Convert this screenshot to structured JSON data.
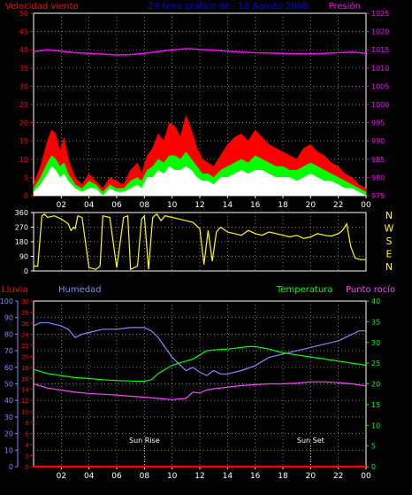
{
  "colors": {
    "wind_max": "#ff0000",
    "wind_avg": "#00ff00",
    "wind_min": "#ffffff",
    "pressure": "#ff00ff",
    "direction": "#ffff00",
    "rain": "#ff0000",
    "humidity": "#8888ff",
    "temperature": "#00ff00",
    "dewpoint": "#ff44ff",
    "grid": "#aaaaaa",
    "axis": "#ffffff",
    "title": "#0000ff"
  },
  "chart_data": [
    {
      "type": "area",
      "title": "24 hora gráfico de - 18 Agosto 2008",
      "left_axis_label": "Velocidad viento",
      "right_axis_label": "Presión",
      "x_ticks": [
        "02",
        "04",
        "06",
        "08",
        "10",
        "12",
        "14",
        "16",
        "18",
        "20",
        "22",
        "00"
      ],
      "x_range": [
        0,
        24
      ],
      "left_ylim": [
        0,
        50
      ],
      "left_ticks": [
        "0",
        "5",
        "10",
        "15",
        "20",
        "25",
        "30",
        "35",
        "40",
        "45",
        "50"
      ],
      "right_ylim": [
        975,
        1025
      ],
      "right_ticks": [
        "975",
        "980",
        "985",
        "990",
        "995",
        "1000",
        "1005",
        "1010",
        "1015",
        "1020",
        "1025"
      ],
      "grid": true,
      "series": [
        {
          "key": "wind_gust",
          "axis": "left",
          "x": [
            0.0,
            0.5,
            1.0,
            1.3,
            1.6,
            1.9,
            2.2,
            2.5,
            3.0,
            3.5,
            4.0,
            4.5,
            5.0,
            5.5,
            6.0,
            6.5,
            7.0,
            7.5,
            7.8,
            8.2,
            8.6,
            9.0,
            9.4,
            9.8,
            10.2,
            10.6,
            11.0,
            11.4,
            11.8,
            12.2,
            12.6,
            13.0,
            13.5,
            14.0,
            14.5,
            15.0,
            15.5,
            16.0,
            16.5,
            17.0,
            17.5,
            18.0,
            18.5,
            19.0,
            19.5,
            20.0,
            20.5,
            21.0,
            21.5,
            22.0,
            22.5,
            23.0,
            23.5,
            24.0
          ],
          "values": [
            3,
            8,
            15,
            18,
            17,
            12,
            16,
            10,
            5,
            3,
            6,
            4,
            2,
            5,
            4,
            3,
            7,
            9,
            6,
            11,
            13,
            17,
            15,
            20,
            19,
            16,
            22,
            18,
            13,
            10,
            9,
            8,
            11,
            14,
            16,
            17,
            15,
            18,
            16,
            14,
            13,
            12,
            11,
            10,
            13,
            14,
            12,
            11,
            9,
            8,
            6,
            5,
            3,
            2
          ]
        },
        {
          "key": "wind_avg",
          "axis": "left",
          "x": [
            0.0,
            0.5,
            1.0,
            1.3,
            1.6,
            1.9,
            2.2,
            2.5,
            3.0,
            3.5,
            4.0,
            4.5,
            5.0,
            5.5,
            6.0,
            6.5,
            7.0,
            7.5,
            7.8,
            8.2,
            8.6,
            9.0,
            9.4,
            9.8,
            10.2,
            10.6,
            11.0,
            11.4,
            11.8,
            12.2,
            12.6,
            13.0,
            13.5,
            14.0,
            14.5,
            15.0,
            15.5,
            16.0,
            16.5,
            17.0,
            17.5,
            18.0,
            18.5,
            19.0,
            19.5,
            20.0,
            20.5,
            21.0,
            21.5,
            22.0,
            22.5,
            23.0,
            23.5,
            24.0
          ],
          "values": [
            2,
            5,
            9,
            11,
            10,
            8,
            9,
            6,
            3,
            2,
            4,
            3,
            1,
            3,
            2,
            2,
            4,
            5,
            4,
            7,
            8,
            10,
            9,
            11,
            11,
            10,
            12,
            10,
            8,
            6,
            6,
            5,
            7,
            8,
            9,
            10,
            9,
            11,
            10,
            9,
            8,
            8,
            7,
            7,
            8,
            9,
            8,
            7,
            6,
            5,
            4,
            3,
            2,
            1
          ]
        },
        {
          "key": "wind_min",
          "axis": "left",
          "x": [
            0.0,
            0.5,
            1.0,
            1.3,
            1.6,
            1.9,
            2.2,
            2.5,
            3.0,
            3.5,
            4.0,
            4.5,
            5.0,
            5.5,
            6.0,
            6.5,
            7.0,
            7.5,
            7.8,
            8.2,
            8.6,
            9.0,
            9.4,
            9.8,
            10.2,
            10.6,
            11.0,
            11.4,
            11.8,
            12.2,
            12.6,
            13.0,
            13.5,
            14.0,
            14.5,
            15.0,
            15.5,
            16.0,
            16.5,
            17.0,
            17.5,
            18.0,
            18.5,
            19.0,
            19.5,
            20.0,
            20.5,
            21.0,
            21.5,
            22.0,
            22.5,
            23.0,
            23.5,
            24.0
          ],
          "values": [
            1,
            3,
            6,
            8,
            7,
            5,
            6,
            4,
            2,
            1,
            2,
            2,
            0,
            2,
            1,
            1,
            2,
            3,
            2,
            5,
            5,
            7,
            6,
            8,
            7,
            7,
            8,
            7,
            5,
            4,
            4,
            3,
            5,
            5,
            6,
            7,
            6,
            7,
            7,
            6,
            5,
            5,
            5,
            4,
            5,
            6,
            5,
            4,
            4,
            3,
            2,
            2,
            1,
            0
          ]
        },
        {
          "key": "pressure",
          "axis": "right",
          "x": [
            0,
            1,
            2,
            3,
            4,
            5,
            6,
            7,
            8,
            9,
            10,
            11,
            12,
            13,
            14,
            15,
            16,
            17,
            18,
            19,
            20,
            21,
            22,
            23,
            24
          ],
          "values": [
            1014.5,
            1015.0,
            1014.6,
            1014.2,
            1014.0,
            1013.8,
            1013.6,
            1013.7,
            1014.0,
            1014.5,
            1015.0,
            1015.3,
            1015.1,
            1014.9,
            1014.6,
            1014.4,
            1014.2,
            1014.1,
            1014.0,
            1013.9,
            1013.9,
            1014.0,
            1014.2,
            1014.4,
            1014.0
          ]
        }
      ]
    },
    {
      "type": "line",
      "title": "",
      "ylim": [
        0,
        360
      ],
      "left_ticks": [
        "0",
        "90",
        "180",
        "270",
        "360"
      ],
      "right_labels": [
        "N",
        "W",
        "S",
        "E",
        "N"
      ],
      "x_range": [
        0,
        24
      ],
      "grid": true,
      "series": [
        {
          "key": "wind_direction",
          "x": [
            0.0,
            0.3,
            0.6,
            0.8,
            1.0,
            1.5,
            2.0,
            2.5,
            2.7,
            2.9,
            3.0,
            3.2,
            3.5,
            4.0,
            4.5,
            4.8,
            5.0,
            5.5,
            6.0,
            6.5,
            6.8,
            7.0,
            7.5,
            7.8,
            8.0,
            8.3,
            8.6,
            8.9,
            9.2,
            9.5,
            10.0,
            10.5,
            11.0,
            11.5,
            12.0,
            12.3,
            12.6,
            12.9,
            13.2,
            13.5,
            14.0,
            14.5,
            15.0,
            15.5,
            16.0,
            16.5,
            17.0,
            17.5,
            18.0,
            18.5,
            19.0,
            19.5,
            20.0,
            20.5,
            21.0,
            21.5,
            22.0,
            22.3,
            22.6,
            22.9,
            23.2,
            23.6,
            24.0
          ],
          "values": [
            30,
            30,
            340,
            350,
            330,
            340,
            320,
            290,
            250,
            270,
            260,
            340,
            330,
            20,
            10,
            30,
            340,
            330,
            20,
            330,
            340,
            10,
            30,
            320,
            340,
            10,
            330,
            350,
            310,
            340,
            330,
            320,
            310,
            300,
            260,
            40,
            250,
            60,
            240,
            270,
            240,
            230,
            220,
            250,
            230,
            220,
            240,
            230,
            220,
            210,
            220,
            200,
            210,
            230,
            220,
            215,
            230,
            250,
            290,
            150,
            80,
            70,
            70
          ]
        }
      ]
    },
    {
      "type": "line",
      "title": "",
      "rain_label": "Lluvia",
      "humidity_label": "Humedad",
      "temperature_label": "Temperatura",
      "dewpoint_label": "Punto rocío",
      "x_ticks": [
        "02",
        "04",
        "06",
        "08",
        "10",
        "12",
        "14",
        "16",
        "18",
        "20",
        "22",
        "00"
      ],
      "x_range": [
        0,
        24
      ],
      "humidity_ylim": [
        0,
        100
      ],
      "humidity_ticks": [
        "0",
        "10",
        "20",
        "30",
        "40",
        "50",
        "60",
        "70",
        "80",
        "90",
        "100"
      ],
      "rain_ylim": [
        0,
        30
      ],
      "rain_ticks": [
        "0",
        "2",
        "4",
        "6",
        "8",
        "10",
        "12",
        "14",
        "16",
        "18",
        "20",
        "22",
        "24",
        "26",
        "28",
        "30"
      ],
      "temp_ylim": [
        0,
        40
      ],
      "temp_ticks": [
        "0",
        "5",
        "10",
        "15",
        "20",
        "25",
        "30",
        "35",
        "40"
      ],
      "grid": true,
      "annotations": [
        {
          "label": "Sun Rise",
          "x": 8.0
        },
        {
          "label": "Sun Set",
          "x": 20.0
        }
      ],
      "series": [
        {
          "key": "humidity",
          "axis": "humidity",
          "x": [
            0,
            0.5,
            1,
            1.5,
            2,
            2.5,
            3,
            3.5,
            4,
            5,
            6,
            7,
            8,
            8.5,
            9,
            9.5,
            10,
            10.5,
            11,
            11.5,
            12,
            12.5,
            13,
            13.5,
            14,
            15,
            16,
            17,
            18,
            19,
            20,
            21,
            22,
            23,
            23.5,
            24
          ],
          "values": [
            85,
            87,
            87,
            86,
            85,
            83,
            78,
            80,
            81,
            83,
            83,
            84,
            84,
            82,
            78,
            72,
            66,
            62,
            58,
            60,
            57,
            55,
            58,
            56,
            56,
            58,
            61,
            66,
            68,
            70,
            72,
            74,
            76,
            80,
            82,
            82
          ]
        },
        {
          "key": "temperature",
          "axis": "temp",
          "x": [
            0,
            1,
            2,
            3,
            4,
            5,
            6,
            7,
            8,
            8.5,
            9,
            9.5,
            10,
            10.5,
            11,
            11.5,
            12,
            12.5,
            13,
            14,
            15,
            15.5,
            16,
            17,
            18,
            19,
            20,
            21,
            22,
            23,
            24
          ],
          "values": [
            23.5,
            22.5,
            22.0,
            21.5,
            21.3,
            21.0,
            20.8,
            20.7,
            20.6,
            21.0,
            22.5,
            23.5,
            24.5,
            25.0,
            25.5,
            26.0,
            27.0,
            28.0,
            28.2,
            28.4,
            28.8,
            29.0,
            29.0,
            28.4,
            27.5,
            27.0,
            26.5,
            26.0,
            25.5,
            25.0,
            24.5
          ]
        },
        {
          "key": "dewpoint",
          "axis": "temp",
          "x": [
            0,
            1,
            2,
            3,
            4,
            5,
            6,
            7,
            8,
            9,
            10,
            11,
            11.5,
            12,
            12.5,
            13,
            14,
            15,
            16,
            17,
            18,
            19,
            20,
            21,
            22,
            23,
            24
          ],
          "values": [
            20.0,
            19.0,
            18.5,
            18.0,
            17.7,
            17.5,
            17.3,
            17.0,
            16.8,
            16.5,
            16.2,
            16.5,
            18.0,
            17.8,
            18.5,
            18.8,
            19.2,
            19.6,
            19.8,
            20.0,
            20.0,
            20.2,
            20.5,
            20.5,
            20.3,
            20.0,
            19.5
          ]
        },
        {
          "key": "rain",
          "axis": "rain",
          "x": [
            0,
            24
          ],
          "values": [
            0,
            0
          ]
        }
      ]
    }
  ]
}
